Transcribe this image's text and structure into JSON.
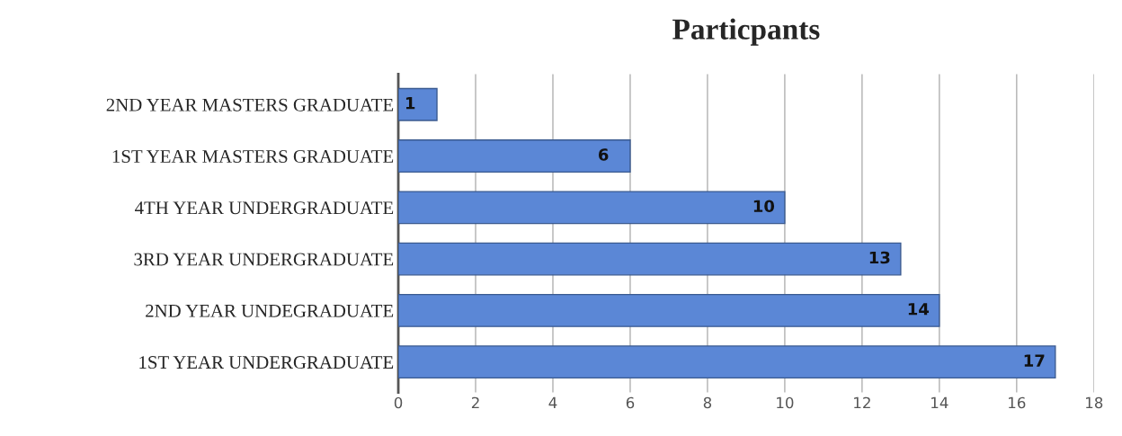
{
  "chart_data": {
    "type": "bar",
    "orientation": "horizontal",
    "title": "Particpants",
    "categories": [
      "2ND YEAR MASTERS GRADUATE",
      "1ST YEAR MASTERS GRADUATE",
      "4TH YEAR UNDERGRADUATE",
      "3RD YEAR UNDERGRADUATE",
      "2ND YEAR UNDEGRADUATE",
      "1ST YEAR UNDERGRADUATE"
    ],
    "values": [
      1,
      6,
      10,
      13,
      14,
      17
    ],
    "color": "#5b87d6",
    "xlim": [
      0,
      18
    ],
    "xticks": [
      0,
      2,
      4,
      6,
      8,
      10,
      12,
      14,
      16,
      18
    ],
    "grid": "x",
    "data_labels": true
  }
}
